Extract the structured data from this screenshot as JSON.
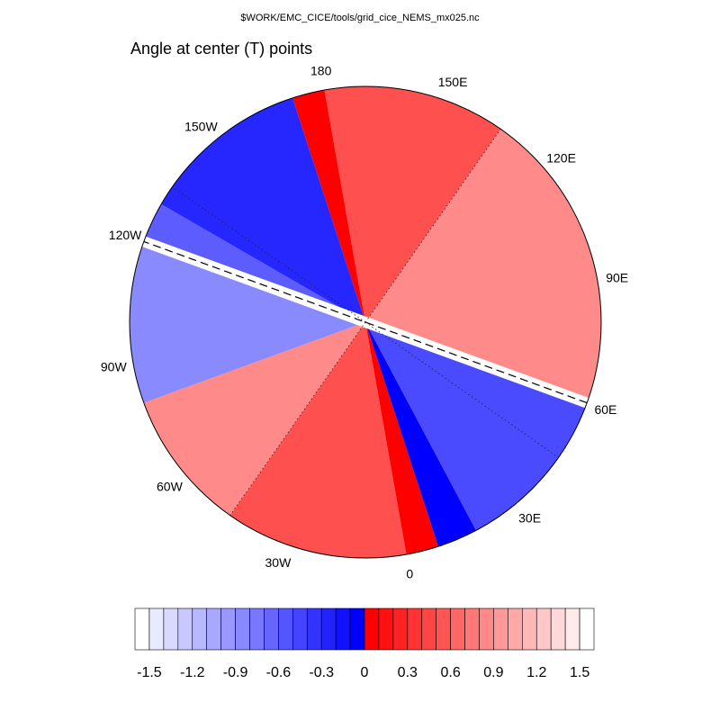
{
  "file_title": "$WORK/EMC_CICE/tools/grid_cice_NEMS_mx025.nc",
  "plot_title": "Angle at center (T) points",
  "map": {
    "projection": "polar stereographic",
    "longitude_labels": [
      {
        "lon": 0,
        "text": "0"
      },
      {
        "lon": 30,
        "text": "30E"
      },
      {
        "lon": 60,
        "text": "60E"
      },
      {
        "lon": 90,
        "text": "90E"
      },
      {
        "lon": 120,
        "text": "120E"
      },
      {
        "lon": 150,
        "text": "150E"
      },
      {
        "lon": 180,
        "text": "180"
      },
      {
        "lon": -150,
        "text": "150W"
      },
      {
        "lon": -120,
        "text": "120W"
      },
      {
        "lon": -90,
        "text": "90W"
      },
      {
        "lon": -60,
        "text": "60W"
      },
      {
        "lon": -30,
        "text": "30W"
      }
    ],
    "dotted_meridians": [
      135,
      -45,
      -135,
      45
    ],
    "dashed_meridian": [
      60,
      -120
    ]
  },
  "colors": {
    "neg_strong": "#0000ff",
    "neg_light": "#8a8aff",
    "pos_strong": "#ff0000",
    "pos_light": "#ff8a8a"
  },
  "colorbar": {
    "tick_labels": [
      "-1.5",
      "-1.2",
      "-0.9",
      "-0.6",
      "-0.3",
      "0",
      "0.3",
      "0.6",
      "0.9",
      "1.2",
      "1.5"
    ],
    "tick_values": [
      -1.5,
      -1.2,
      -0.9,
      -0.6,
      -0.3,
      0,
      0.3,
      0.6,
      0.9,
      1.2,
      1.5
    ],
    "levels": [
      -1.6,
      -1.5,
      -1.4,
      -1.3,
      -1.2,
      -1.1,
      -1.0,
      -0.9,
      -0.8,
      -0.7,
      -0.6,
      -0.5,
      -0.4,
      -0.3,
      -0.2,
      -0.1,
      0,
      0.1,
      0.2,
      0.3,
      0.4,
      0.5,
      0.6,
      0.7,
      0.8,
      0.9,
      1.0,
      1.1,
      1.2,
      1.3,
      1.4,
      1.5,
      1.6
    ],
    "boxes": [
      "#ffffff",
      "#eaeaff",
      "#d9d9ff",
      "#c8c8ff",
      "#b8b8ff",
      "#a8a8ff",
      "#9898ff",
      "#8888ff",
      "#7777ff",
      "#6666ff",
      "#5555ff",
      "#4444ff",
      "#3333ff",
      "#2222ff",
      "#1111ff",
      "#0000ff",
      "#ff0000",
      "#ff1111",
      "#ff2222",
      "#ff3333",
      "#ff4444",
      "#ff5555",
      "#ff6666",
      "#ff7777",
      "#ff8888",
      "#ff9898",
      "#ffa8a8",
      "#ffb8b8",
      "#ffc8c8",
      "#ffd9d9",
      "#ffeaea",
      "#ffffff"
    ]
  }
}
